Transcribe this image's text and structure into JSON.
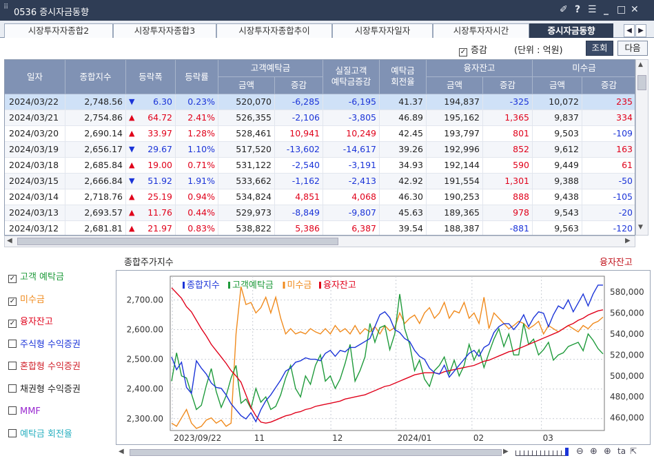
{
  "window": {
    "title": "0536 증시자금동향"
  },
  "tabs": [
    "시장투자자종합2",
    "시장투자자종합3",
    "시장투자자종합추이",
    "시장투자자일자",
    "시장투자자시간",
    "증시자금동향"
  ],
  "active_tab": 5,
  "toolbar": {
    "checkbox_label": "증감",
    "unit": "(단위 : 억원)",
    "query": "조회",
    "next": "다음"
  },
  "columns": {
    "date": "일자",
    "index": "종합지수",
    "change": "등락폭",
    "rate": "등락률",
    "deposit": "고객예탁금",
    "deposit_amt": "금액",
    "deposit_chg": "증감",
    "real": "실질고객\n예탁금증감",
    "turnover": "예탁금\n회전율",
    "loan": "융자잔고",
    "loan_amt": "금액",
    "loan_chg": "증감",
    "unpaid": "미수금",
    "unpaid_amt": "금액",
    "unpaid_chg": "증감"
  },
  "rows": [
    {
      "date": "2024/03/22",
      "index": "2,748.56",
      "dir": "down",
      "change": "6.30",
      "rate": "0.23%",
      "dep": "520,070",
      "depchg": "-6,285",
      "real": "-6,195",
      "turn": "41.37",
      "loan": "194,837",
      "loanchg": "-325",
      "unpaid": "10,072",
      "unpaidchg": "235"
    },
    {
      "date": "2024/03/21",
      "index": "2,754.86",
      "dir": "up",
      "change": "64.72",
      "rate": "2.41%",
      "dep": "526,355",
      "depchg": "-2,106",
      "real": "-3,805",
      "turn": "46.89",
      "loan": "195,162",
      "loanchg": "1,365",
      "unpaid": "9,837",
      "unpaidchg": "334"
    },
    {
      "date": "2024/03/20",
      "index": "2,690.14",
      "dir": "up",
      "change": "33.97",
      "rate": "1.28%",
      "dep": "528,461",
      "depchg": "10,941",
      "real": "10,249",
      "turn": "42.45",
      "loan": "193,797",
      "loanchg": "801",
      "unpaid": "9,503",
      "unpaidchg": "-109"
    },
    {
      "date": "2024/03/19",
      "index": "2,656.17",
      "dir": "down",
      "change": "29.67",
      "rate": "1.10%",
      "dep": "517,520",
      "depchg": "-13,602",
      "real": "-14,617",
      "turn": "39.26",
      "loan": "192,996",
      "loanchg": "852",
      "unpaid": "9,612",
      "unpaidchg": "163"
    },
    {
      "date": "2024/03/18",
      "index": "2,685.84",
      "dir": "up",
      "change": "19.00",
      "rate": "0.71%",
      "dep": "531,122",
      "depchg": "-2,540",
      "real": "-3,191",
      "turn": "34.93",
      "loan": "192,144",
      "loanchg": "590",
      "unpaid": "9,449",
      "unpaidchg": "61"
    },
    {
      "date": "2024/03/15",
      "index": "2,666.84",
      "dir": "down",
      "change": "51.92",
      "rate": "1.91%",
      "dep": "533,662",
      "depchg": "-1,162",
      "real": "-2,413",
      "turn": "42.92",
      "loan": "191,554",
      "loanchg": "1,301",
      "unpaid": "9,388",
      "unpaidchg": "-50"
    },
    {
      "date": "2024/03/14",
      "index": "2,718.76",
      "dir": "up",
      "change": "25.19",
      "rate": "0.94%",
      "dep": "534,824",
      "depchg": "4,851",
      "real": "4,068",
      "turn": "46.30",
      "loan": "190,253",
      "loanchg": "888",
      "unpaid": "9,438",
      "unpaidchg": "-105"
    },
    {
      "date": "2024/03/13",
      "index": "2,693.57",
      "dir": "up",
      "change": "11.76",
      "rate": "0.44%",
      "dep": "529,973",
      "depchg": "-8,849",
      "real": "-9,807",
      "turn": "45.63",
      "loan": "189,365",
      "loanchg": "978",
      "unpaid": "9,543",
      "unpaidchg": "-20"
    },
    {
      "date": "2024/03/12",
      "index": "2,681.81",
      "dir": "up",
      "change": "21.97",
      "rate": "0.83%",
      "dep": "538,822",
      "depchg": "5,386",
      "real": "6,387",
      "turn": "39.54",
      "loan": "188,387",
      "loanchg": "-881",
      "unpaid": "9,563",
      "unpaidchg": "-120"
    }
  ],
  "side_checks": [
    {
      "label": "고객 예탁금",
      "checked": true,
      "color": "#1e9a3a"
    },
    {
      "label": "미수금",
      "checked": true,
      "color": "#f08a1c"
    },
    {
      "label": "융자잔고",
      "checked": true,
      "color": "#e0001a"
    },
    {
      "label": "주식형 수익증권",
      "checked": false,
      "color": "#1b34d8"
    },
    {
      "label": "혼합형 수익증권",
      "checked": false,
      "color": "#d0202a"
    },
    {
      "label": "채권형 수익증권",
      "checked": false,
      "color": "#222222"
    },
    {
      "label": "MMF",
      "checked": false,
      "color": "#9a2ad0"
    },
    {
      "label": "예탁금 회전율",
      "checked": false,
      "color": "#2ab0c0"
    }
  ],
  "chart_data": {
    "type": "line",
    "title": "종합주가지수",
    "right_title": "융자잔고",
    "legend": [
      {
        "name": "종합지수",
        "color": "#1b34d8"
      },
      {
        "name": "고객예탁금",
        "color": "#1e9a3a"
      },
      {
        "name": "미수금",
        "color": "#f08a1c"
      },
      {
        "name": "융자잔고",
        "color": "#e0001a"
      }
    ],
    "x_ticks": [
      "2023/09/22",
      "11",
      "12",
      "2024/01",
      "02",
      "03"
    ],
    "left_axis": {
      "ticks": [
        "2,700.00",
        "2,600.00",
        "2,500.00",
        "2,400.00",
        "2,300.00"
      ],
      "range": [
        2260,
        2780
      ]
    },
    "right_axis": {
      "ticks": [
        "580,000",
        "560,000",
        "540,000",
        "520,000",
        "500,000",
        "480,000",
        "460,000"
      ],
      "range": [
        448000,
        595000
      ]
    },
    "series": [
      {
        "name": "종합지수",
        "axis": "left",
        "color": "#1b34d8",
        "values": [
          2508,
          2465,
          2490,
          2405,
          2385,
          2495,
          2470,
          2450,
          2420,
          2405,
          2402,
          2380,
          2350,
          2330,
          2310,
          2299,
          2320,
          2290,
          2330,
          2360,
          2380,
          2405,
          2430,
          2460,
          2470,
          2490,
          2495,
          2505,
          2500,
          2500,
          2495,
          2520,
          2530,
          2510,
          2530,
          2525,
          2540,
          2540,
          2550,
          2560,
          2570,
          2610,
          2650,
          2660,
          2640,
          2600,
          2590,
          2570,
          2560,
          2530,
          2510,
          2500,
          2470,
          2455,
          2450,
          2480,
          2440,
          2460,
          2480,
          2500,
          2520,
          2530,
          2510,
          2540,
          2550,
          2590,
          2610,
          2620,
          2620,
          2600,
          2620,
          2650,
          2610,
          2640,
          2660,
          2655,
          2610,
          2650,
          2680,
          2670,
          2700,
          2660,
          2690,
          2720,
          2680,
          2720,
          2750,
          2750
        ]
      },
      {
        "name": "고객예탁금",
        "axis": "right",
        "color": "#1e9a3a",
        "values": [
          495000,
          522000,
          500000,
          498000,
          483000,
          468000,
          472000,
          491000,
          507000,
          485000,
          470000,
          481000,
          498000,
          510000,
          474000,
          478000,
          469000,
          488000,
          475000,
          480000,
          468000,
          471000,
          482000,
          498000,
          510000,
          488000,
          480000,
          500000,
          492000,
          510000,
          520000,
          495000,
          500000,
          488000,
          497000,
          512000,
          530000,
          495000,
          505000,
          518000,
          550000,
          532000,
          546000,
          548000,
          525000,
          540000,
          578000,
          545000,
          530000,
          505000,
          515000,
          497000,
          490000,
          505000,
          510000,
          518000,
          502000,
          515000,
          500000,
          510000,
          530000,
          515000,
          525000,
          508000,
          522000,
          535000,
          545000,
          528000,
          540000,
          520000,
          520000,
          550000,
          530000,
          535000,
          520000,
          525000,
          532000,
          515000,
          520000,
          522000,
          528000,
          530000,
          532000,
          524000,
          540000,
          534000,
          526000,
          521000
        ]
      },
      {
        "name": "미수금",
        "axis": "right",
        "color": "#f08a1c",
        "values": [
          455000,
          452000,
          460000,
          468000,
          455000,
          450000,
          452000,
          458000,
          460000,
          455000,
          458000,
          452000,
          455000,
          540000,
          585000,
          568000,
          570000,
          560000,
          565000,
          575000,
          560000,
          575000,
          555000,
          540000,
          545000,
          540000,
          542000,
          540000,
          545000,
          542000,
          540000,
          545000,
          540000,
          548000,
          542000,
          545000,
          540000,
          548000,
          540000,
          545000,
          542000,
          547000,
          540000,
          548000,
          543000,
          546000,
          560000,
          550000,
          555000,
          558000,
          550000,
          560000,
          565000,
          555000,
          560000,
          570000,
          555000,
          562000,
          560000,
          570000,
          555000,
          560000,
          550000,
          575000,
          545000,
          560000,
          555000,
          550000,
          545000,
          548000,
          552000,
          550000,
          545000,
          548000,
          552000,
          540000,
          548000,
          545000,
          542000,
          545000,
          548000,
          545000,
          542000,
          548000,
          545000,
          550000,
          552000,
          556000
        ]
      },
      {
        "name": "융자잔고",
        "axis": "right",
        "color": "#e0001a",
        "values": [
          584000,
          579000,
          574000,
          566000,
          561000,
          553000,
          545000,
          538000,
          530000,
          524000,
          518000,
          512000,
          505000,
          500000,
          494000,
          482000,
          470000,
          462000,
          456000,
          455000,
          456000,
          458000,
          460000,
          462000,
          463000,
          465000,
          466000,
          468000,
          469000,
          471000,
          472000,
          473000,
          474000,
          475000,
          476000,
          478000,
          479000,
          480000,
          481000,
          482000,
          484000,
          486000,
          488000,
          490000,
          491000,
          493000,
          495000,
          497000,
          499000,
          501000,
          502000,
          503000,
          503000,
          503000,
          502000,
          504000,
          505000,
          506000,
          507000,
          508000,
          509000,
          510000,
          512000,
          514000,
          515000,
          517000,
          519000,
          521000,
          523000,
          524000,
          526000,
          528000,
          530000,
          532000,
          534000,
          536000,
          538000,
          540000,
          542000,
          545000,
          548000,
          550000,
          553000,
          555000,
          558000,
          560000,
          562000,
          563000
        ]
      }
    ]
  }
}
